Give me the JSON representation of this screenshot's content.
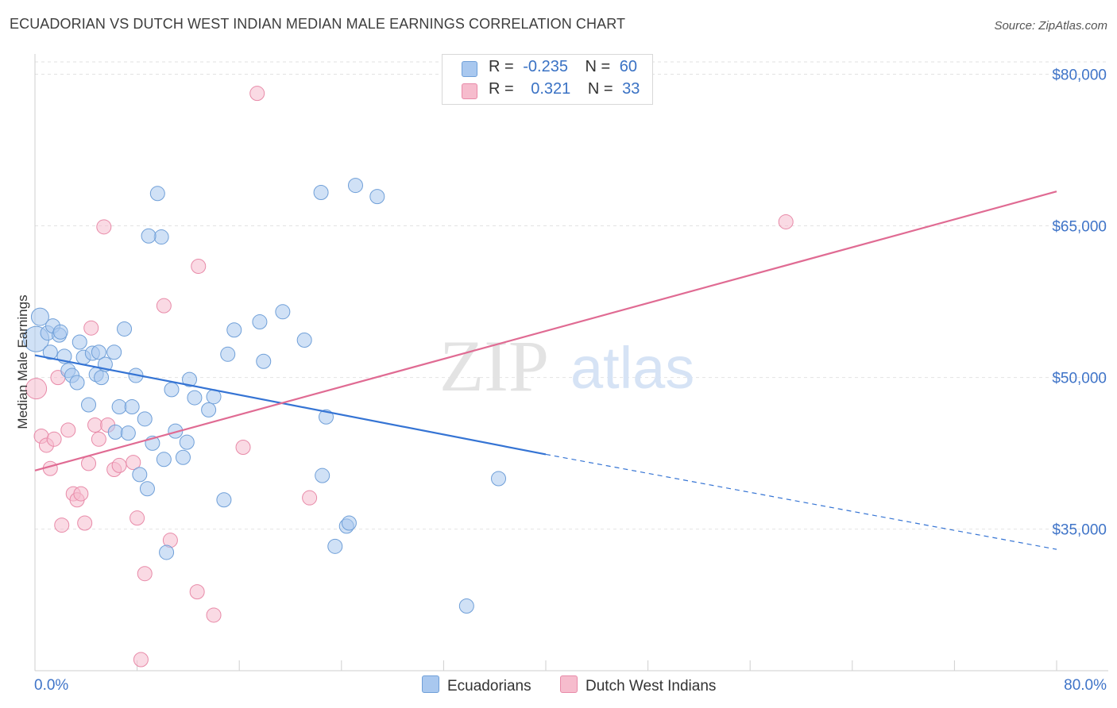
{
  "title": "ECUADORIAN VS DUTCH WEST INDIAN MEDIAN MALE EARNINGS CORRELATION CHART",
  "source": "Source: ZipAtlas.com",
  "watermark": {
    "zip": "ZIP",
    "atlas": "atlas"
  },
  "legend": {
    "rows": [
      {
        "r_label": "R =",
        "r_value": "-0.235",
        "n_label": "N =",
        "n_value": "60"
      },
      {
        "r_label": "R =",
        "r_value": "0.321",
        "n_label": "N =",
        "n_value": "33"
      }
    ]
  },
  "bottom_legend": {
    "series_a": "Ecuadorians",
    "series_b": "Dutch West Indians"
  },
  "colors": {
    "blue_fill": "#a9c8ef",
    "blue_stroke": "#6f9fd8",
    "blue_line": "#3574d4",
    "pink_fill": "#f6bccd",
    "pink_stroke": "#e88aa8",
    "pink_line": "#e06b93",
    "tick_text": "#3f74c8",
    "grid": "#e2e2e2"
  },
  "chart_data": {
    "type": "scatter",
    "title": "ECUADORIAN VS DUTCH WEST INDIAN MEDIAN MALE EARNINGS CORRELATION CHART",
    "xlabel": "",
    "ylabel": "Median Male Earnings",
    "xlim": [
      0,
      80
    ],
    "ylim": [
      21000,
      82000
    ],
    "x_tick_labels": [
      "0.0%",
      "80.0%"
    ],
    "y_ticks": [
      {
        "value": 35000,
        "label": "$35,000"
      },
      {
        "value": 50000,
        "label": "$50,000"
      },
      {
        "value": 65000,
        "label": "$65,000"
      },
      {
        "value": 80000,
        "label": "$80,000"
      }
    ],
    "series": [
      {
        "name": "Ecuadorians",
        "color": "#a9c8ef",
        "r": -0.235,
        "n": 60,
        "trend": {
          "x_solid": [
            0,
            40
          ],
          "y_solid": [
            52200,
            42400
          ],
          "x_dashed": [
            40,
            80
          ],
          "y_dashed": [
            42400,
            33000
          ]
        },
        "points": [
          [
            0.1,
            53800
          ],
          [
            0.4,
            56000
          ],
          [
            1.0,
            54400
          ],
          [
            1.4,
            55100
          ],
          [
            1.9,
            54200
          ],
          [
            1.2,
            52500
          ],
          [
            2.3,
            52100
          ],
          [
            2.6,
            50700
          ],
          [
            2.9,
            50200
          ],
          [
            3.3,
            49500
          ],
          [
            3.5,
            53500
          ],
          [
            3.8,
            52000
          ],
          [
            4.2,
            47300
          ],
          [
            4.5,
            52400
          ],
          [
            4.8,
            50300
          ],
          [
            5.0,
            52500
          ],
          [
            5.2,
            50000
          ],
          [
            5.5,
            51300
          ],
          [
            6.2,
            52500
          ],
          [
            6.3,
            44600
          ],
          [
            6.6,
            47100
          ],
          [
            7.0,
            54800
          ],
          [
            7.3,
            44500
          ],
          [
            7.6,
            47100
          ],
          [
            7.9,
            50200
          ],
          [
            8.2,
            40400
          ],
          [
            8.6,
            45900
          ],
          [
            8.8,
            39000
          ],
          [
            9.2,
            43500
          ],
          [
            9.6,
            68200
          ],
          [
            9.9,
            63900
          ],
          [
            10.1,
            41900
          ],
          [
            10.3,
            32700
          ],
          [
            10.7,
            48800
          ],
          [
            11.0,
            44700
          ],
          [
            11.6,
            42100
          ],
          [
            11.9,
            43600
          ],
          [
            12.1,
            49800
          ],
          [
            12.5,
            48000
          ],
          [
            13.6,
            46800
          ],
          [
            14.0,
            48100
          ],
          [
            14.8,
            37900
          ],
          [
            15.1,
            52300
          ],
          [
            15.6,
            54700
          ],
          [
            17.6,
            55500
          ],
          [
            17.9,
            51600
          ],
          [
            19.4,
            56500
          ],
          [
            21.1,
            53700
          ],
          [
            22.4,
            68300
          ],
          [
            22.5,
            40300
          ],
          [
            22.8,
            46100
          ],
          [
            23.5,
            33300
          ],
          [
            24.4,
            35300
          ],
          [
            24.6,
            35600
          ],
          [
            25.1,
            69000
          ],
          [
            26.8,
            67900
          ],
          [
            8.9,
            64000
          ],
          [
            33.8,
            27400
          ],
          [
            36.3,
            40000
          ],
          [
            2.0,
            54500
          ]
        ]
      },
      {
        "name": "Dutch West Indians",
        "color": "#f6bccd",
        "r": 0.321,
        "n": 33,
        "trend": {
          "x": [
            0,
            80
          ],
          "y": [
            40800,
            68400
          ]
        },
        "points": [
          [
            0.1,
            48900
          ],
          [
            0.5,
            44200
          ],
          [
            0.9,
            43300
          ],
          [
            1.2,
            41000
          ],
          [
            1.5,
            43900
          ],
          [
            1.8,
            50000
          ],
          [
            2.1,
            35400
          ],
          [
            2.6,
            44800
          ],
          [
            3.0,
            38500
          ],
          [
            3.3,
            37900
          ],
          [
            3.6,
            38500
          ],
          [
            3.9,
            35600
          ],
          [
            4.2,
            41500
          ],
          [
            4.4,
            54900
          ],
          [
            4.7,
            45300
          ],
          [
            5.0,
            43900
          ],
          [
            5.7,
            45300
          ],
          [
            6.2,
            40900
          ],
          [
            6.6,
            41300
          ],
          [
            7.7,
            41600
          ],
          [
            8.0,
            36100
          ],
          [
            8.3,
            22100
          ],
          [
            8.6,
            30600
          ],
          [
            10.1,
            57100
          ],
          [
            10.6,
            33900
          ],
          [
            12.8,
            61000
          ],
          [
            12.7,
            28800
          ],
          [
            14.0,
            26500
          ],
          [
            16.3,
            43100
          ],
          [
            17.4,
            78100
          ],
          [
            21.5,
            38100
          ],
          [
            58.8,
            65400
          ],
          [
            5.4,
            64900
          ]
        ]
      }
    ]
  }
}
